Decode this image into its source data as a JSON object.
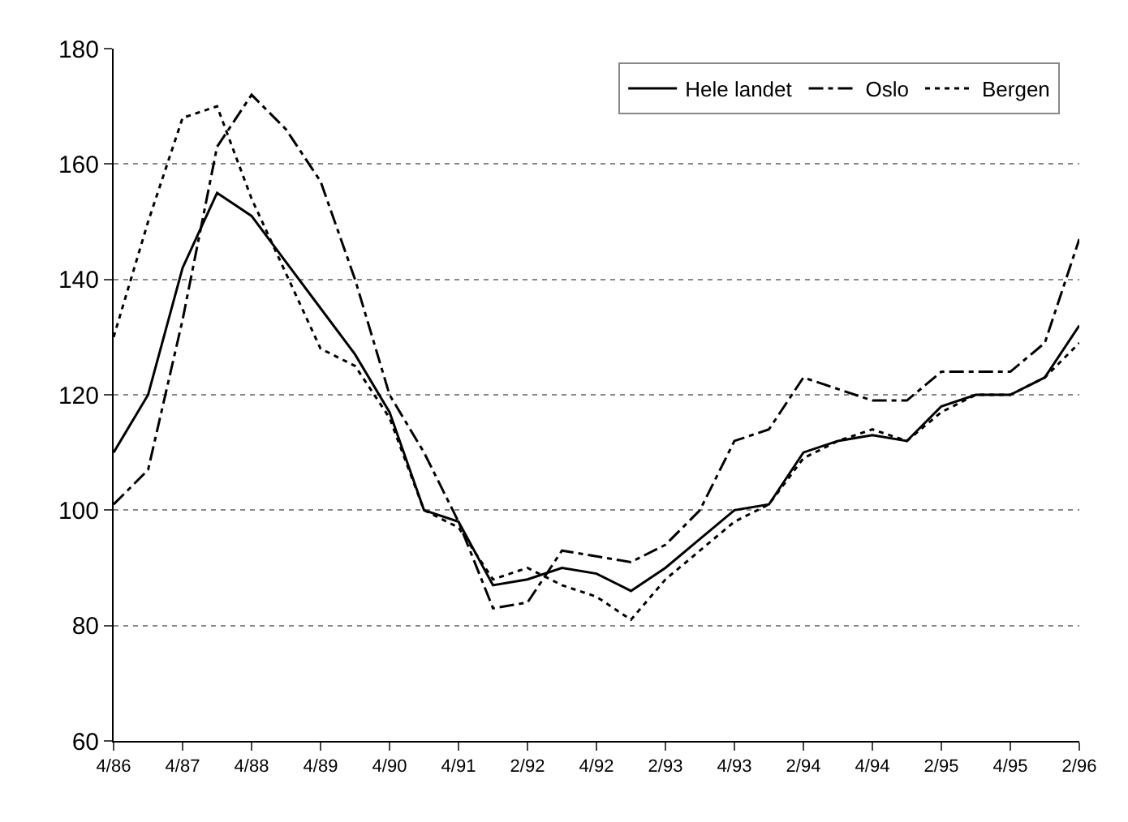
{
  "chart_data": {
    "type": "line",
    "categories": [
      "4/86",
      null,
      "4/87",
      null,
      "4/88",
      null,
      "4/89",
      null,
      "4/90",
      null,
      "4/91",
      null,
      "2/92",
      null,
      "4/92",
      null,
      "2/93",
      null,
      "4/93",
      null,
      "2/94",
      null,
      "4/94",
      null,
      "2/95",
      null,
      "4/95",
      null,
      "2/96"
    ],
    "series": [
      {
        "name": "Hele landet",
        "color": "#000000",
        "line_style": "solid",
        "values": [
          110,
          120,
          142,
          155,
          151,
          143,
          135,
          127,
          117,
          100,
          98,
          87,
          88,
          90,
          89,
          86,
          90,
          95,
          100,
          101,
          110,
          112,
          113,
          112,
          118,
          120,
          120,
          123,
          132
        ]
      },
      {
        "name": "Oslo",
        "color": "#000000",
        "line_style": "dashdot",
        "values": [
          101,
          107,
          133,
          163,
          172,
          166,
          157,
          140,
          120,
          110,
          98,
          83,
          84,
          93,
          92,
          91,
          94,
          100,
          112,
          114,
          123,
          121,
          119,
          119,
          124,
          124,
          124,
          129,
          147
        ]
      },
      {
        "name": "Bergen",
        "color": "#000000",
        "line_style": "dotted",
        "values": [
          130,
          150,
          168,
          170,
          154,
          141,
          128,
          125,
          116,
          100,
          97,
          88,
          90,
          87,
          85,
          81,
          88,
          93,
          98,
          101,
          109,
          112,
          114,
          112,
          117,
          120,
          120,
          123,
          129
        ]
      }
    ],
    "ylim": [
      60,
      180
    ],
    "yticks": [
      60,
      80,
      100,
      120,
      140,
      160,
      180
    ],
    "grid": "y",
    "legend": "top right",
    "marker": "none"
  }
}
